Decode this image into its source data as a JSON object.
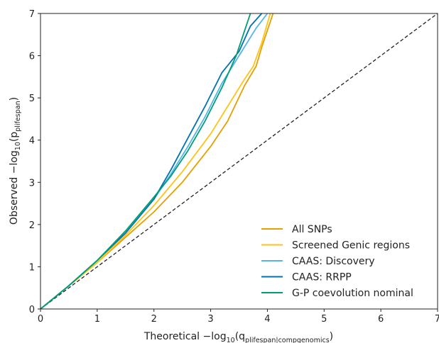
{
  "chart_data": {
    "type": "line",
    "xlabel": {
      "prefix": "Theoretical −log",
      "base": "10",
      "open": "(q",
      "sub": "plifespan|compgenomics",
      "close": ")"
    },
    "ylabel": {
      "prefix": "Observed −log",
      "base": "10",
      "open": "(p",
      "sub": "plifespan",
      "close": ")"
    },
    "xlim": [
      0,
      7
    ],
    "ylim": [
      0,
      7
    ],
    "xticks": [
      "0",
      "1",
      "2",
      "3",
      "4",
      "5",
      "6",
      "7"
    ],
    "yticks": [
      "0",
      "1",
      "2",
      "3",
      "4",
      "5",
      "6",
      "7"
    ],
    "grid": false,
    "legend_position": "lower-right",
    "reference_line": {
      "style": "dashed",
      "color": "#222222",
      "x": [
        0,
        7
      ],
      "y": [
        0,
        7
      ]
    },
    "series": [
      {
        "name": "All SNPs",
        "color": "#E69F00",
        "x": [
          0,
          0.5,
          1.0,
          1.5,
          2.0,
          2.5,
          3.0,
          3.3,
          3.6,
          3.8,
          3.9,
          4.0,
          4.1
        ],
        "y": [
          0,
          0.55,
          1.1,
          1.7,
          2.3,
          3.0,
          3.85,
          4.45,
          5.3,
          5.75,
          6.2,
          6.6,
          7.0
        ]
      },
      {
        "name": "Screened Genic regions",
        "color": "#FFC21A",
        "x": [
          0,
          0.5,
          1.0,
          1.5,
          2.0,
          2.5,
          3.0,
          3.3,
          3.6,
          3.75,
          3.9,
          4.05
        ],
        "y": [
          0,
          0.55,
          1.1,
          1.75,
          2.45,
          3.25,
          4.15,
          4.8,
          5.45,
          5.75,
          6.3,
          7.0
        ]
      },
      {
        "name": "CAAS: Discovery",
        "color": "#56B4E9",
        "x": [
          0,
          0.5,
          1.0,
          1.5,
          2.0,
          2.3,
          2.6,
          2.9,
          3.2,
          3.5,
          3.8,
          4.0
        ],
        "y": [
          0,
          0.55,
          1.15,
          1.8,
          2.6,
          3.2,
          3.85,
          4.55,
          5.35,
          6.0,
          6.65,
          7.0
        ]
      },
      {
        "name": "CAAS: RRPP",
        "color": "#0072B2",
        "x": [
          0,
          0.5,
          1.0,
          1.5,
          2.0,
          2.3,
          2.6,
          2.9,
          3.2,
          3.5,
          3.7,
          3.9
        ],
        "y": [
          0,
          0.55,
          1.15,
          1.8,
          2.6,
          3.3,
          4.05,
          4.8,
          5.6,
          6.1,
          6.7,
          7.0
        ]
      },
      {
        "name": "G-P coevolution nominal",
        "color": "#009E73",
        "x": [
          0,
          0.5,
          1.0,
          1.5,
          2.0,
          2.3,
          2.6,
          2.9,
          3.2,
          3.45,
          3.6,
          3.7
        ],
        "y": [
          0,
          0.55,
          1.15,
          1.85,
          2.65,
          3.15,
          3.75,
          4.45,
          5.25,
          6.0,
          6.6,
          7.0
        ]
      }
    ]
  }
}
